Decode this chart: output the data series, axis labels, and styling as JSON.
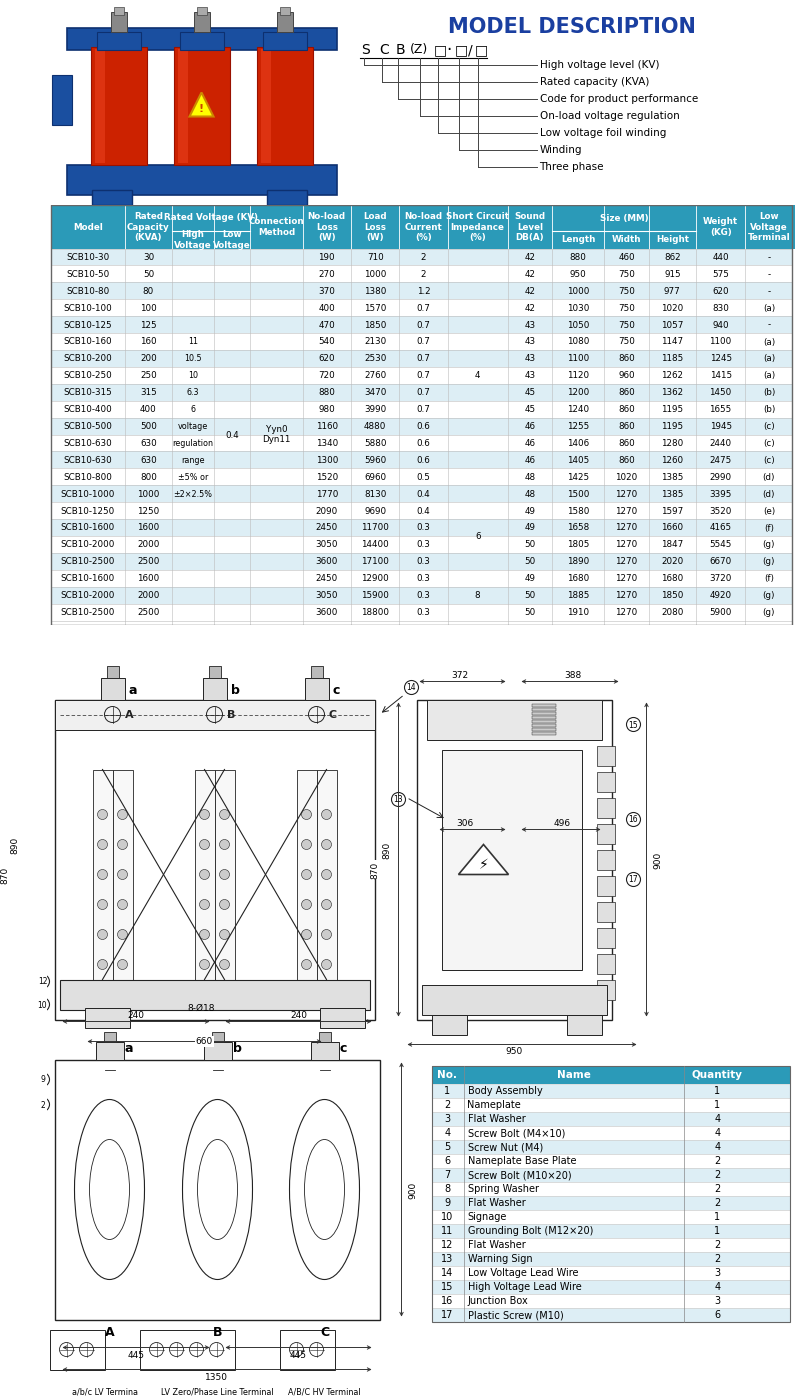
{
  "title": "MODEL DESCRIPTION",
  "model_desc_labels": [
    "High voltage level (KV)",
    "Rated capacity (KVA)",
    "Code for product performance",
    "On-load voltage regulation",
    "Low voltage foil winding",
    "Winding",
    "Three phase"
  ],
  "table_header_bg": "#2b9ab8",
  "table_header_color": "#ffffff",
  "table_alt_row_bg": "#ddeef5",
  "table_row_bg": "#ffffff",
  "table_data": [
    [
      "SCB10-30",
      "30",
      "",
      "",
      "",
      "190",
      "710",
      "2",
      "",
      "42",
      "880",
      "460",
      "862",
      "440",
      "-"
    ],
    [
      "SCB10-50",
      "50",
      "",
      "",
      "",
      "270",
      "1000",
      "2",
      "",
      "42",
      "950",
      "750",
      "915",
      "575",
      "-"
    ],
    [
      "SCB10-80",
      "80",
      "",
      "",
      "",
      "370",
      "1380",
      "1.2",
      "",
      "42",
      "1000",
      "750",
      "977",
      "620",
      "-"
    ],
    [
      "SCB10-100",
      "100",
      "",
      "",
      "",
      "400",
      "1570",
      "0.7",
      "",
      "42",
      "1030",
      "750",
      "1020",
      "830",
      "(a)"
    ],
    [
      "SCB10-125",
      "125",
      "",
      "",
      "",
      "470",
      "1850",
      "0.7",
      "",
      "43",
      "1050",
      "750",
      "1057",
      "940",
      "-"
    ],
    [
      "SCB10-160",
      "160",
      "11",
      "",
      "",
      "540",
      "2130",
      "0.7",
      "4",
      "43",
      "1080",
      "750",
      "1147",
      "1100",
      "(a)"
    ],
    [
      "SCB10-200",
      "200",
      "10.5",
      "",
      "",
      "620",
      "2530",
      "0.7",
      "",
      "43",
      "1100",
      "860",
      "1185",
      "1245",
      "(a)"
    ],
    [
      "SCB10-250",
      "250",
      "10",
      "",
      "",
      "720",
      "2760",
      "0.7",
      "",
      "43",
      "1120",
      "960",
      "1262",
      "1415",
      "(a)"
    ],
    [
      "SCB10-315",
      "315",
      "6.3",
      "",
      "",
      "880",
      "3470",
      "0.7",
      "",
      "45",
      "1200",
      "860",
      "1362",
      "1450",
      "(b)"
    ],
    [
      "SCB10-400",
      "400",
      "6",
      "",
      "",
      "980",
      "3990",
      "0.7",
      "",
      "45",
      "1240",
      "860",
      "1195",
      "1655",
      "(b)"
    ],
    [
      "SCB10-500",
      "500",
      "voltage",
      "",
      "",
      "1160",
      "4880",
      "0.6",
      "",
      "46",
      "1255",
      "860",
      "1195",
      "1945",
      "(c)"
    ],
    [
      "SCB10-630",
      "630",
      "regulation",
      "",
      "",
      "1340",
      "5880",
      "0.6",
      "",
      "46",
      "1406",
      "860",
      "1280",
      "2440",
      "(c)"
    ],
    [
      "SCB10-630",
      "630",
      "range",
      "",
      "",
      "1300",
      "5960",
      "0.6",
      "",
      "46",
      "1405",
      "860",
      "1260",
      "2475",
      "(c)"
    ],
    [
      "SCB10-800",
      "800",
      "±5% or",
      "",
      "",
      "1520",
      "6960",
      "0.5",
      "",
      "48",
      "1425",
      "1020",
      "1385",
      "2990",
      "(d)"
    ],
    [
      "SCB10-1000",
      "1000",
      "±2×2.5%",
      "",
      "",
      "1770",
      "8130",
      "0.4",
      "",
      "48",
      "1500",
      "1270",
      "1385",
      "3395",
      "(d)"
    ],
    [
      "SCB10-1250",
      "1250",
      "",
      "",
      "",
      "2090",
      "9690",
      "0.4",
      "6",
      "49",
      "1580",
      "1270",
      "1597",
      "3520",
      "(e)"
    ],
    [
      "SCB10-1600",
      "1600",
      "",
      "",
      "",
      "2450",
      "11700",
      "0.3",
      "",
      "49",
      "1658",
      "1270",
      "1660",
      "4165",
      "(f)"
    ],
    [
      "SCB10-2000",
      "2000",
      "",
      "",
      "",
      "3050",
      "14400",
      "0.3",
      "",
      "50",
      "1805",
      "1270",
      "1847",
      "5545",
      "(g)"
    ],
    [
      "SCB10-2500",
      "2500",
      "",
      "",
      "",
      "3600",
      "17100",
      "0.3",
      "",
      "50",
      "1890",
      "1270",
      "2020",
      "6670",
      "(g)"
    ],
    [
      "SCB10-1600",
      "1600",
      "",
      "",
      "",
      "2450",
      "12900",
      "0.3",
      "",
      "49",
      "1680",
      "1270",
      "1680",
      "3720",
      "(f)"
    ],
    [
      "SCB10-2000",
      "2000",
      "",
      "",
      "",
      "3050",
      "15900",
      "0.3",
      "8",
      "50",
      "1885",
      "1270",
      "1850",
      "4920",
      "(g)"
    ],
    [
      "SCB10-2500",
      "2500",
      "",
      "",
      "",
      "3600",
      "18800",
      "0.3",
      "",
      "50",
      "1910",
      "1270",
      "2080",
      "5900",
      "(g)"
    ]
  ],
  "hv_merged_text": [
    "11",
    "10.5",
    "10",
    "6.3",
    "6",
    "voltage",
    "regulation",
    "range",
    "±5% or",
    "±2×2.5%"
  ],
  "parts_list": [
    [
      1,
      "Body Assembly",
      1
    ],
    [
      2,
      "Nameplate",
      1
    ],
    [
      3,
      "Flat Washer",
      4
    ],
    [
      4,
      "Screw Bolt (M4×10)",
      4
    ],
    [
      5,
      "Screw Nut (M4)",
      4
    ],
    [
      6,
      "Nameplate Base Plate",
      2
    ],
    [
      7,
      "Screw Bolt (M10×20)",
      2
    ],
    [
      8,
      "Spring Washer",
      2
    ],
    [
      9,
      "Flat Washer",
      2
    ],
    [
      10,
      "Signage",
      1
    ],
    [
      11,
      "Grounding Bolt (M12×20)",
      1
    ],
    [
      12,
      "Flat Washer",
      2
    ],
    [
      13,
      "Warning Sign",
      2
    ],
    [
      14,
      "Low Voltage Lead Wire",
      3
    ],
    [
      15,
      "High Voltage Lead Wire",
      4
    ],
    [
      16,
      "Junction Box",
      3
    ],
    [
      17,
      "Plastic Screw (M10)",
      6
    ]
  ],
  "bottom_labels": [
    "a/b/c LV Termina",
    "LV Zero/Phase Line Terminal",
    "A/B/C HV Terminal"
  ],
  "draw_color": "#222222",
  "hdr_blue": "#2b9ab8"
}
